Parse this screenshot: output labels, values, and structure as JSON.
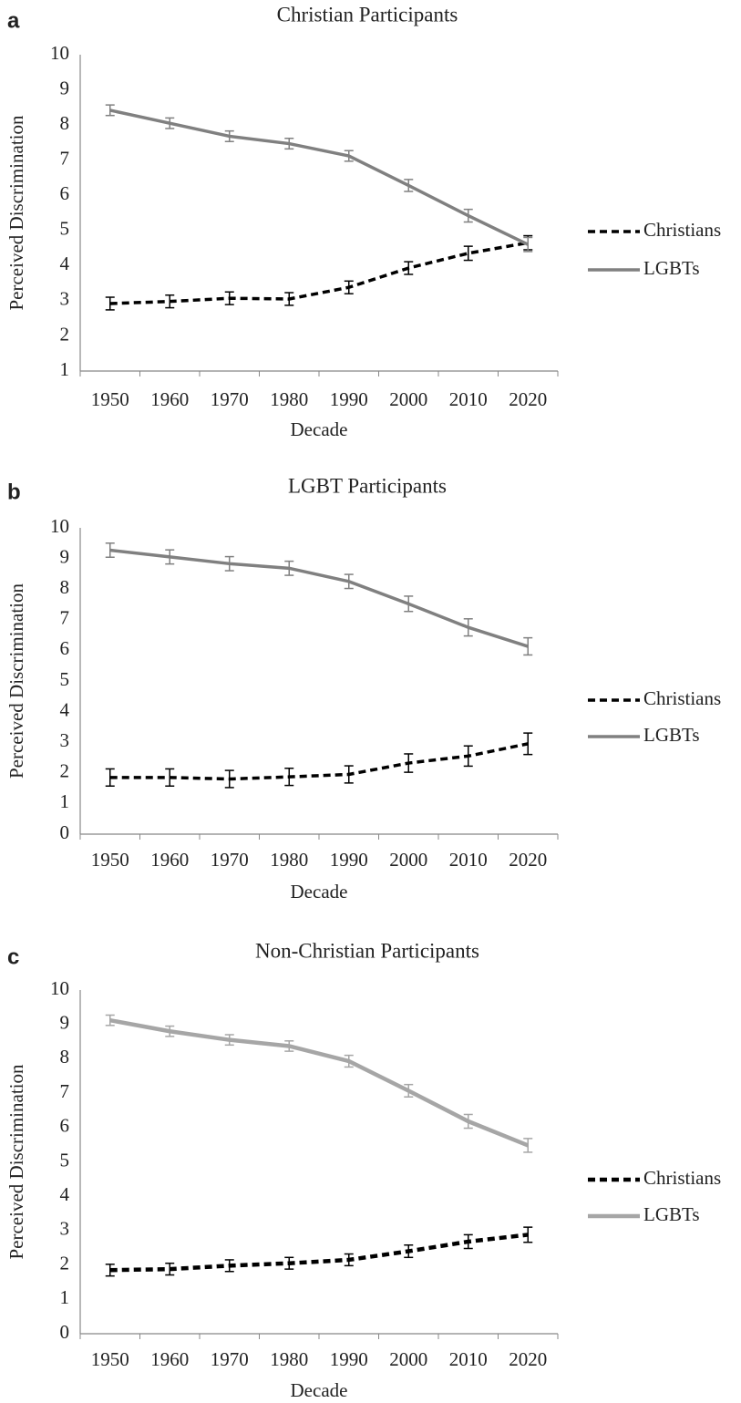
{
  "chart_data": [
    {
      "type": "line",
      "panel_label": "a",
      "title": "Christian Participants",
      "x_label": "Decade",
      "y_label": "Perceived Discrimination",
      "categories": [
        "1950",
        "1960",
        "1970",
        "1980",
        "1990",
        "2000",
        "2010",
        "2020"
      ],
      "ylim": [
        1,
        10
      ],
      "yticks": [
        1,
        2,
        3,
        4,
        5,
        6,
        7,
        8,
        9,
        10
      ],
      "grid": false,
      "legend": "right",
      "series": [
        {
          "name": "Christians",
          "color": "#000000",
          "style": "dashed",
          "values": [
            2.92,
            2.98,
            3.07,
            3.05,
            3.38,
            3.93,
            4.35,
            4.65
          ],
          "errors": [
            0.18,
            0.18,
            0.18,
            0.18,
            0.18,
            0.18,
            0.2,
            0.2
          ]
        },
        {
          "name": "LGBTs",
          "color": "#808080",
          "style": "solid",
          "values": [
            8.42,
            8.05,
            7.68,
            7.47,
            7.12,
            6.28,
            5.42,
            4.6
          ],
          "errors": [
            0.15,
            0.15,
            0.15,
            0.15,
            0.15,
            0.17,
            0.18,
            0.2
          ]
        }
      ]
    },
    {
      "type": "line",
      "panel_label": "b",
      "title": "LGBT Participants",
      "x_label": "Decade",
      "y_label": "Perceived Discrimination",
      "categories": [
        "1950",
        "1960",
        "1970",
        "1980",
        "1990",
        "2000",
        "2010",
        "2020"
      ],
      "ylim": [
        0,
        10
      ],
      "yticks": [
        0,
        1,
        2,
        3,
        4,
        5,
        6,
        7,
        8,
        9,
        10
      ],
      "grid": false,
      "legend": "right",
      "series": [
        {
          "name": "Christians",
          "color": "#000000",
          "style": "dashed",
          "values": [
            1.85,
            1.85,
            1.8,
            1.87,
            1.95,
            2.32,
            2.55,
            2.95
          ],
          "errors": [
            0.28,
            0.28,
            0.28,
            0.28,
            0.28,
            0.3,
            0.33,
            0.35
          ]
        },
        {
          "name": "LGBTs",
          "color": "#808080",
          "style": "solid",
          "values": [
            9.27,
            9.05,
            8.83,
            8.68,
            8.25,
            7.52,
            6.75,
            6.13
          ],
          "errors": [
            0.23,
            0.23,
            0.23,
            0.23,
            0.23,
            0.25,
            0.28,
            0.28
          ]
        }
      ]
    },
    {
      "type": "line",
      "panel_label": "c",
      "title": "Non-Christian Participants",
      "x_label": "Decade",
      "y_label": "Perceived Discrimination",
      "categories": [
        "1950",
        "1960",
        "1970",
        "1980",
        "1990",
        "2000",
        "2010",
        "2020"
      ],
      "ylim": [
        0,
        10
      ],
      "yticks": [
        0,
        1,
        2,
        3,
        4,
        5,
        6,
        7,
        8,
        9,
        10
      ],
      "grid": false,
      "legend": "right",
      "series": [
        {
          "name": "Christians",
          "color": "#000000",
          "style": "dashed",
          "values": [
            1.85,
            1.88,
            1.98,
            2.05,
            2.15,
            2.4,
            2.68,
            2.88
          ],
          "errors": [
            0.17,
            0.17,
            0.17,
            0.17,
            0.17,
            0.18,
            0.2,
            0.22
          ]
        },
        {
          "name": "LGBTs",
          "color": "#a6a6a6",
          "style": "solid",
          "values": [
            9.12,
            8.8,
            8.55,
            8.37,
            7.93,
            7.07,
            6.18,
            5.48
          ],
          "errors": [
            0.15,
            0.15,
            0.15,
            0.15,
            0.17,
            0.18,
            0.2,
            0.2
          ]
        }
      ]
    }
  ]
}
